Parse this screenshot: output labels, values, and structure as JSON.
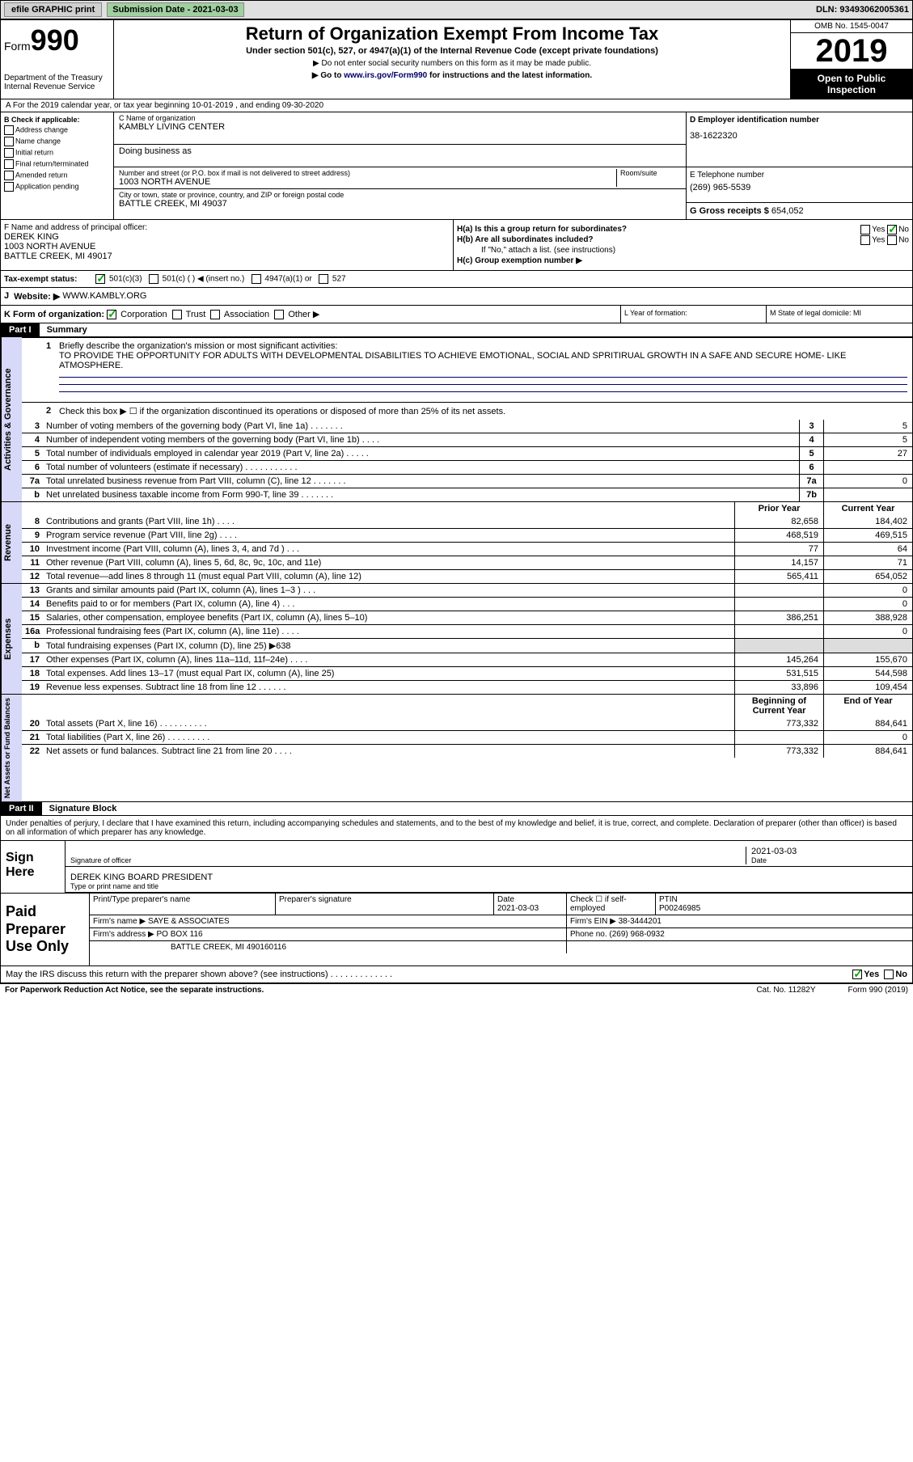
{
  "topbar": {
    "efile": "efile GRAPHIC print",
    "submission_label": "Submission Date - 2021-03-03",
    "dln": "DLN: 93493062005361"
  },
  "header": {
    "form_prefix": "Form",
    "form_num": "990",
    "title": "Return of Organization Exempt From Income Tax",
    "sub1": "Under section 501(c), 527, or 4947(a)(1) of the Internal Revenue Code (except private foundations)",
    "sub2a": "▶ Do not enter social security numbers on this form as it may be made public.",
    "sub2b_pre": "▶ Go to ",
    "sub2b_link": "www.irs.gov/Form990",
    "sub2b_post": " for instructions and the latest information.",
    "dept": "Department of the Treasury\nInternal Revenue Service",
    "omb": "OMB No. 1545-0047",
    "year": "2019",
    "open": "Open to Public Inspection"
  },
  "rowA": "A For the 2019 calendar year, or tax year beginning 10-01-2019   , and ending 09-30-2020",
  "B": {
    "label": "B Check if applicable:",
    "opts": [
      "Address change",
      "Name change",
      "Initial return",
      "Final return/terminated",
      "Amended return",
      "Application pending"
    ]
  },
  "C": {
    "name_label": "C Name of organization",
    "name": "KAMBLY LIVING CENTER",
    "dba_label": "Doing business as",
    "street_label": "Number and street (or P.O. box if mail is not delivered to street address)",
    "room_label": "Room/suite",
    "street": "1003 NORTH AVENUE",
    "city_label": "City or town, state or province, country, and ZIP or foreign postal code",
    "city": "BATTLE CREEK, MI  49037"
  },
  "D": {
    "label": "D Employer identification number",
    "val": "38-1622320"
  },
  "E": {
    "label": "E Telephone number",
    "val": "(269) 965-5539"
  },
  "G": {
    "label": "G Gross receipts $",
    "val": "654,052"
  },
  "F": {
    "label": "F  Name and address of principal officer:",
    "name": "DEREK KING",
    "addr1": "1003 NORTH AVENUE",
    "addr2": "BATTLE CREEK, MI  49017"
  },
  "H": {
    "a": "H(a)  Is this a group return for subordinates?",
    "b": "H(b)  Are all subordinates included?",
    "b_note": "If \"No,\" attach a list. (see instructions)",
    "c": "H(c)  Group exemption number ▶",
    "yes": "Yes",
    "no": "No"
  },
  "I": {
    "label": "Tax-exempt status:",
    "opts": [
      "501(c)(3)",
      "501(c) (  ) ◀ (insert no.)",
      "4947(a)(1) or",
      "527"
    ]
  },
  "J": {
    "label": "Website: ▶",
    "val": "WWW.KAMBLY.ORG"
  },
  "K": {
    "label": "K Form of organization:",
    "opts": [
      "Corporation",
      "Trust",
      "Association",
      "Other ▶"
    ]
  },
  "L": {
    "label": "L Year of formation:"
  },
  "M": {
    "label": "M State of legal domicile: MI"
  },
  "part1": {
    "title": "Part I",
    "name": "Summary",
    "line1": "Briefly describe the organization's mission or most significant activities:",
    "mission": "TO PROVIDE THE OPPORTUNITY FOR ADULTS WITH DEVELOPMENTAL DISABILITIES TO ACHIEVE EMOTIONAL, SOCIAL AND SPRITIRUAL GROWTH IN A SAFE AND SECURE HOME- LIKE ATMOSPHERE.",
    "line2": "Check this box ▶ ☐ if the organization discontinued its operations or disposed of more than 25% of its net assets."
  },
  "governance": {
    "label": "Activities & Governance",
    "rows": [
      {
        "n": "3",
        "d": "Number of voting members of the governing body (Part VI, line 1a) . . . . . . .",
        "box": "3",
        "v": "5"
      },
      {
        "n": "4",
        "d": "Number of independent voting members of the governing body (Part VI, line 1b) . . . .",
        "box": "4",
        "v": "5"
      },
      {
        "n": "5",
        "d": "Total number of individuals employed in calendar year 2019 (Part V, line 2a) . . . . .",
        "box": "5",
        "v": "27"
      },
      {
        "n": "6",
        "d": "Total number of volunteers (estimate if necessary) . . . . . . . . . . .",
        "box": "6",
        "v": ""
      },
      {
        "n": "7a",
        "d": "Total unrelated business revenue from Part VIII, column (C), line 12 . . . . . . .",
        "box": "7a",
        "v": "0"
      },
      {
        "n": "b",
        "d": "Net unrelated business taxable income from Form 990-T, line 39 . . . . . . .",
        "box": "7b",
        "v": ""
      }
    ]
  },
  "revenue": {
    "label": "Revenue",
    "header": {
      "prior": "Prior Year",
      "current": "Current Year"
    },
    "rows": [
      {
        "n": "8",
        "d": "Contributions and grants (Part VIII, line 1h) . . . .",
        "p": "82,658",
        "c": "184,402"
      },
      {
        "n": "9",
        "d": "Program service revenue (Part VIII, line 2g) . . . .",
        "p": "468,519",
        "c": "469,515"
      },
      {
        "n": "10",
        "d": "Investment income (Part VIII, column (A), lines 3, 4, and 7d ) . . .",
        "p": "77",
        "c": "64"
      },
      {
        "n": "11",
        "d": "Other revenue (Part VIII, column (A), lines 5, 6d, 8c, 9c, 10c, and 11e)",
        "p": "14,157",
        "c": "71"
      },
      {
        "n": "12",
        "d": "Total revenue—add lines 8 through 11 (must equal Part VIII, column (A), line 12)",
        "p": "565,411",
        "c": "654,052"
      }
    ]
  },
  "expenses": {
    "label": "Expenses",
    "rows": [
      {
        "n": "13",
        "d": "Grants and similar amounts paid (Part IX, column (A), lines 1–3 ) . . .",
        "p": "",
        "c": "0"
      },
      {
        "n": "14",
        "d": "Benefits paid to or for members (Part IX, column (A), line 4) . . .",
        "p": "",
        "c": "0"
      },
      {
        "n": "15",
        "d": "Salaries, other compensation, employee benefits (Part IX, column (A), lines 5–10)",
        "p": "386,251",
        "c": "388,928"
      },
      {
        "n": "16a",
        "d": "Professional fundraising fees (Part IX, column (A), line 11e) . . . .",
        "p": "",
        "c": "0"
      },
      {
        "n": "b",
        "d": "Total fundraising expenses (Part IX, column (D), line 25) ▶638",
        "p": "shade",
        "c": "shade"
      },
      {
        "n": "17",
        "d": "Other expenses (Part IX, column (A), lines 11a–11d, 11f–24e) . . . .",
        "p": "145,264",
        "c": "155,670"
      },
      {
        "n": "18",
        "d": "Total expenses. Add lines 13–17 (must equal Part IX, column (A), line 25)",
        "p": "531,515",
        "c": "544,598"
      },
      {
        "n": "19",
        "d": "Revenue less expenses. Subtract line 18 from line 12 . . . . . .",
        "p": "33,896",
        "c": "109,454"
      }
    ]
  },
  "netassets": {
    "label": "Net Assets or Fund Balances",
    "header": {
      "prior": "Beginning of Current Year",
      "current": "End of Year"
    },
    "rows": [
      {
        "n": "20",
        "d": "Total assets (Part X, line 16) . . . . . . . . . .",
        "p": "773,332",
        "c": "884,641"
      },
      {
        "n": "21",
        "d": "Total liabilities (Part X, line 26) . . . . . . . . .",
        "p": "",
        "c": "0"
      },
      {
        "n": "22",
        "d": "Net assets or fund balances. Subtract line 21 from line 20 . . . .",
        "p": "773,332",
        "c": "884,641"
      }
    ]
  },
  "part2": {
    "title": "Part II",
    "name": "Signature Block",
    "decl": "Under penalties of perjury, I declare that I have examined this return, including accompanying schedules and statements, and to the best of my knowledge and belief, it is true, correct, and complete. Declaration of preparer (other than officer) is based on all information of which preparer has any knowledge."
  },
  "sign": {
    "here": "Sign Here",
    "sig_label": "Signature of officer",
    "date_label": "Date",
    "date": "2021-03-03",
    "name": "DEREK KING  BOARD PRESIDENT",
    "name_label": "Type or print name and title"
  },
  "preparer": {
    "title": "Paid Preparer Use Only",
    "r1": {
      "c1": "Print/Type preparer's name",
      "c2": "Preparer's signature",
      "c3": "Date",
      "c3v": "2021-03-03",
      "c4": "Check ☐ if self-employed",
      "c5": "PTIN",
      "c5v": "P00246985"
    },
    "r2": {
      "label": "Firm's name   ▶",
      "val": "SAYE & ASSOCIATES",
      "ein_label": "Firm's EIN ▶",
      "ein": "38-3444201"
    },
    "r3": {
      "label": "Firm's address ▶",
      "val1": "PO BOX 116",
      "val2": "BATTLE CREEK, MI  490160116",
      "phone_label": "Phone no.",
      "phone": "(269) 968-0932"
    },
    "discuss": "May the IRS discuss this return with the preparer shown above? (see instructions) . . . . . . . . . . . . ."
  },
  "footer": {
    "left": "For Paperwork Reduction Act Notice, see the separate instructions.",
    "mid": "Cat. No. 11282Y",
    "right": "Form 990 (2019)"
  }
}
